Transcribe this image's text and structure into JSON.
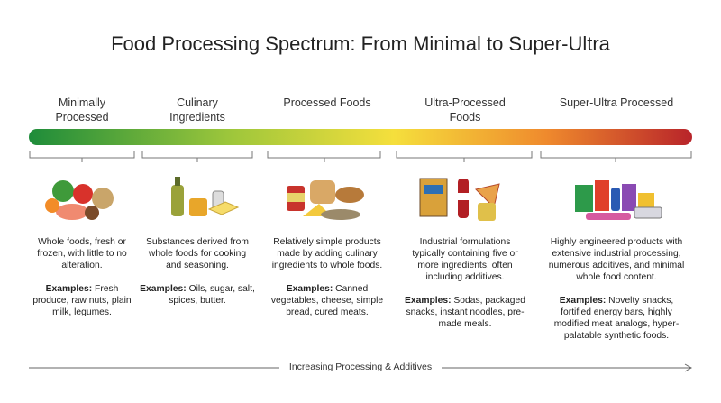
{
  "title": "Food Processing Spectrum: From Minimal to Super-Ultra",
  "stages": [
    {
      "label": "Minimally Processed",
      "description": "Whole foods, fresh or frozen, with little to no alteration.",
      "examples_label": "Examples:",
      "examples": "Fresh produce, raw nuts, plain milk, legumes."
    },
    {
      "label": "Culinary Ingredients",
      "description": "Substances derived from whole foods for cooking and seasoning.",
      "examples_label": "Examples:",
      "examples": "Oils, sugar, salt, spices, butter."
    },
    {
      "label": "Processed Foods",
      "description": "Relatively simple products made by adding culinary ingredients to whole foods.",
      "examples_label": "Examples:",
      "examples": "Canned vegetables, cheese, simple bread, cured meats."
    },
    {
      "label": "Ultra-Processed Foods",
      "description": "Industrial formulations typically containing five or more ingredients, often including additives.",
      "examples_label": "Examples:",
      "examples": "Sodas, packaged snacks, instant noodles, pre-made meals."
    },
    {
      "label": "Super-Ultra Processed",
      "description": "Highly engineered products with extensive industrial processing, numerous additives, and minimal whole food content.",
      "examples_label": "Examples:",
      "examples": "Novelty snacks, fortified energy bars, highly modified meat analogs, hyper-palatable synthetic foods."
    }
  ],
  "axis_label": "Increasing Processing & Additives"
}
